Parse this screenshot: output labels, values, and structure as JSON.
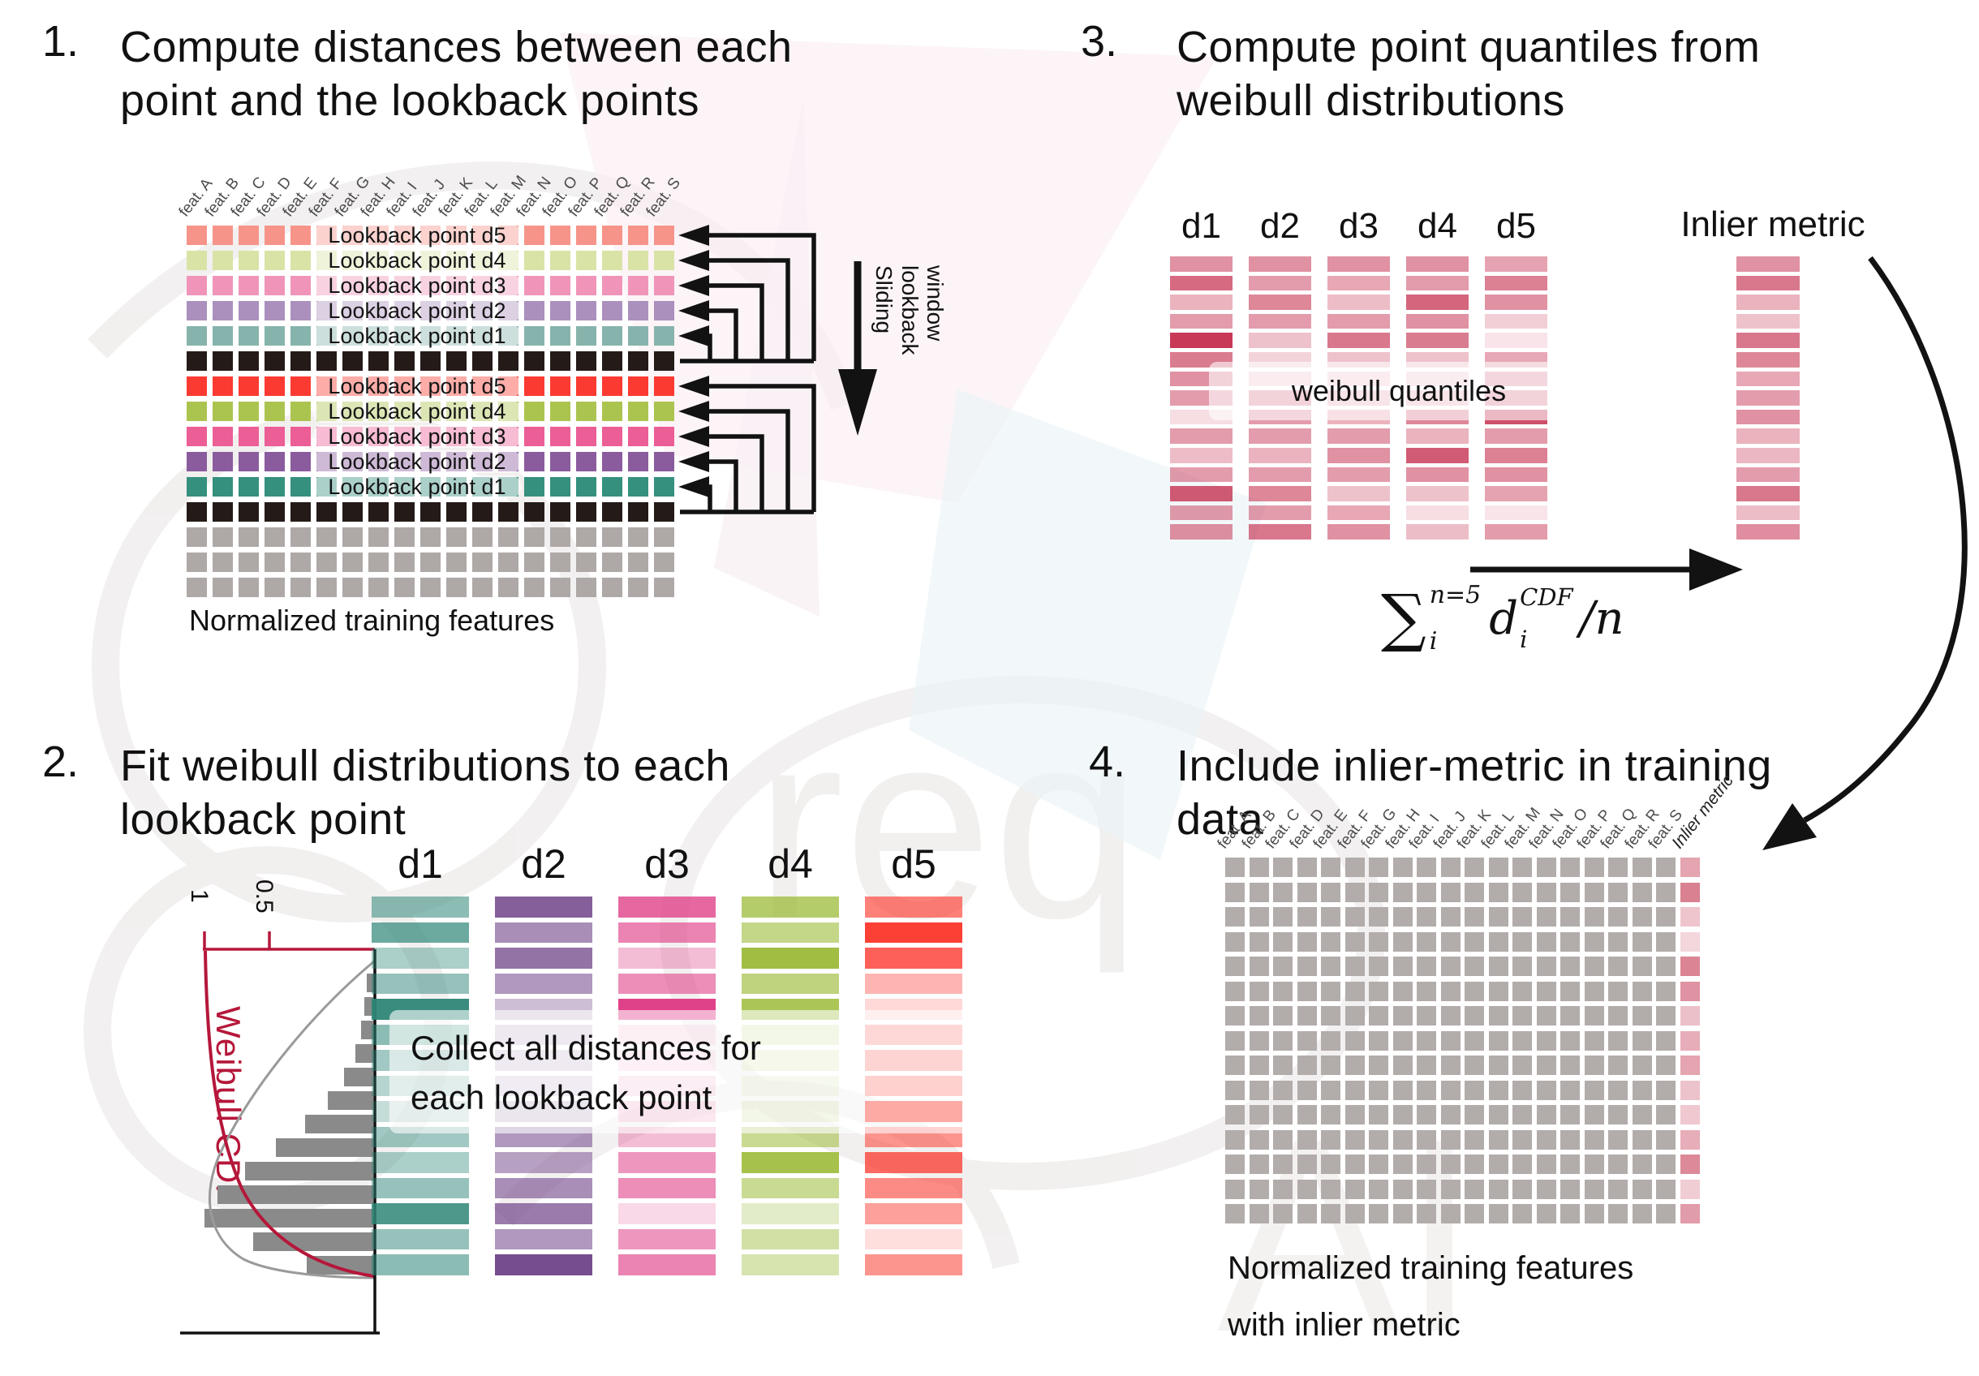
{
  "colors": {
    "crimson": "#c22446",
    "inlier_base": "#c94a62",
    "black_row": "#241b18",
    "gray_row": "#aea8a7",
    "p4_gray": "#b2acab",
    "hist_bar": "#8a8a8a",
    "weibull_red": "#b5173a",
    "arrow_black": "#121212",
    "d1": "#2e8677",
    "d2": "#6f4388",
    "d3": "#e04289",
    "d4": "#9cbb39",
    "d5": "#fb2b20"
  },
  "watermark": {
    "text1": "req",
    "text2": "AI"
  },
  "panel1": {
    "number": "1.",
    "title_lines": [
      "Compute distances between each",
      "point and the lookback points"
    ],
    "feature_labels": [
      "feat. A",
      "feat. B",
      "feat. C",
      "feat. D",
      "feat. E",
      "feat. F",
      "feat. G",
      "feat. H",
      "feat. I",
      "feat. J",
      "feat. K",
      "feat. L",
      "feat. M",
      "feat. N",
      "feat. O",
      "feat. P",
      "feat. Q",
      "feat. R",
      "feat. S"
    ],
    "rows": [
      {
        "color": "#f6948a",
        "label": "Lookback point d5"
      },
      {
        "color": "#d9e3a6",
        "label": "Lookback point d4"
      },
      {
        "color": "#f095b9",
        "label": "Lookback point d3"
      },
      {
        "color": "#ab90bd",
        "label": "Lookback point d2"
      },
      {
        "color": "#86b4ac",
        "label": "Lookback point d1"
      },
      {
        "color": "#241b18"
      },
      {
        "color": "#fb3b31",
        "label": "Lookback point d5"
      },
      {
        "color": "#abc450",
        "label": "Lookback point d4"
      },
      {
        "color": "#eb5e96",
        "label": "Lookback point d3"
      },
      {
        "color": "#8a5c9e",
        "label": "Lookback point d2"
      },
      {
        "color": "#35907e",
        "label": "Lookback point d1"
      },
      {
        "color": "#241b18"
      },
      {
        "color": "#aea8a7"
      },
      {
        "color": "#aea8a7"
      },
      {
        "color": "#aea8a7"
      }
    ],
    "sliding_label": "Sliding lookback window",
    "caption": "Normalized training features"
  },
  "panel2": {
    "number": "2.",
    "title_lines": [
      "Fit weibull distributions to each",
      "lookback point"
    ],
    "plot": {
      "ylabel": "Weibull CDF",
      "tick_1": "1",
      "tick_05": "0.5",
      "hist_lengths": [
        8,
        11,
        15,
        22,
        36,
        56,
        84,
        120,
        158,
        192,
        208,
        148,
        82
      ]
    },
    "columns": [
      {
        "name": "d1",
        "color": "#2e8677",
        "alphas": [
          0.55,
          0.7,
          0.4,
          0.5,
          0.95,
          0.55,
          0.45,
          0.35,
          0.28,
          0.45,
          0.4,
          0.5,
          0.85,
          0.5,
          0.55
        ]
      },
      {
        "name": "d2",
        "color": "#6f4388",
        "alphas": [
          0.85,
          0.6,
          0.75,
          0.55,
          0.35,
          0.3,
          0.28,
          0.25,
          0.35,
          0.55,
          0.5,
          0.6,
          0.7,
          0.55,
          0.95
        ]
      },
      {
        "name": "d3",
        "color": "#e04289",
        "alphas": [
          0.8,
          0.65,
          0.35,
          0.6,
          1.0,
          0.2,
          0.18,
          0.22,
          0.3,
          0.35,
          0.55,
          0.6,
          0.2,
          0.55,
          0.65
        ]
      },
      {
        "name": "d4",
        "color": "#9cbb39",
        "alphas": [
          0.75,
          0.6,
          0.95,
          0.65,
          0.85,
          0.3,
          0.25,
          0.22,
          0.3,
          0.55,
          0.9,
          0.55,
          0.28,
          0.45,
          0.4
        ]
      },
      {
        "name": "d5",
        "color": "#fb2b20",
        "alphas": [
          0.6,
          0.9,
          0.75,
          0.35,
          0.18,
          0.45,
          0.5,
          0.55,
          1.0,
          0.5,
          0.7,
          0.55,
          0.45,
          0.15,
          0.5
        ]
      }
    ],
    "note_lines": [
      "Collect all distances for",
      "each lookback point"
    ]
  },
  "panel3": {
    "number": "3.",
    "title_lines": [
      "Compute point quantiles from",
      "weibull distributions"
    ],
    "headers": [
      "d1",
      "d2",
      "d3",
      "d4",
      "d5"
    ],
    "inlier_header": "Inlier metric",
    "note": "weibull quantiles",
    "columns": [
      {
        "name": "d1",
        "alphas": [
          0.5,
          0.68,
          0.35,
          0.45,
          0.9,
          0.6,
          0.5,
          0.45,
          0.15,
          0.45,
          0.3,
          0.45,
          0.75,
          0.45,
          0.5
        ]
      },
      {
        "name": "d2",
        "alphas": [
          0.5,
          0.45,
          0.55,
          0.45,
          0.28,
          0.2,
          0.22,
          0.5,
          0.45,
          0.45,
          0.35,
          0.45,
          0.55,
          0.45,
          0.62
        ]
      },
      {
        "name": "d3",
        "alphas": [
          0.5,
          0.4,
          0.3,
          0.45,
          0.62,
          0.28,
          0.22,
          0.3,
          0.35,
          0.45,
          0.5,
          0.45,
          0.28,
          0.4,
          0.5
        ]
      },
      {
        "name": "d4",
        "alphas": [
          0.5,
          0.45,
          0.7,
          0.5,
          0.6,
          0.28,
          0.2,
          0.3,
          0.55,
          0.35,
          0.75,
          0.5,
          0.28,
          0.15,
          0.3
        ]
      },
      {
        "name": "d5",
        "alphas": [
          0.42,
          0.58,
          0.5,
          0.22,
          0.12,
          0.4,
          0.45,
          0.5,
          0.8,
          0.45,
          0.58,
          0.5,
          0.42,
          0.12,
          0.45
        ]
      }
    ],
    "inlier_alphas": [
      0.5,
      0.62,
      0.35,
      0.28,
      0.62,
      0.55,
      0.4,
      0.45,
      0.5,
      0.35,
      0.33,
      0.45,
      0.62,
      0.3,
      0.52
    ],
    "formula": {
      "sum": "∑",
      "sum_sup": "n=5",
      "sum_sub": "i",
      "term": "d",
      "term_sup": "CDF",
      "term_sub": "i",
      "divide": "/n"
    }
  },
  "panel4": {
    "number": "4.",
    "title_lines": [
      "Include inlier-metric in training",
      "data"
    ],
    "feature_labels": [
      "feat. A",
      "feat. B",
      "feat. C",
      "feat. D",
      "feat. E",
      "feat. F",
      "feat. G",
      "feat. H",
      "feat. I",
      "feat. J",
      "feat. K",
      "feat. L",
      "feat. M",
      "feat. N",
      "feat. O",
      "feat. P",
      "feat. Q",
      "feat. R",
      "feat. S"
    ],
    "inlier_label": "Inlier metric",
    "inlier_alphas": [
      0.5,
      0.7,
      0.32,
      0.22,
      0.68,
      0.6,
      0.35,
      0.45,
      0.5,
      0.33,
      0.3,
      0.45,
      0.65,
      0.28,
      0.55
    ],
    "caption_lines": [
      "Normalized training features",
      "with inlier metric"
    ]
  }
}
